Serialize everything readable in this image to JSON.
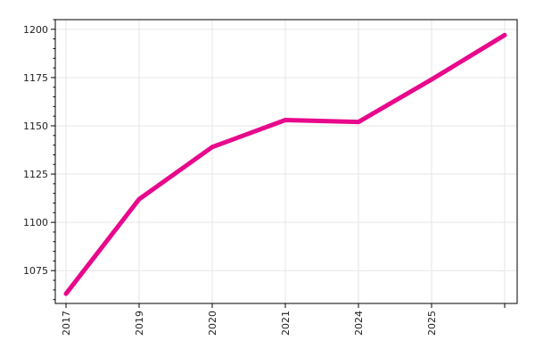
{
  "chart_data": {
    "type": "line",
    "categories": [
      "2017",
      "2019",
      "2020",
      "2021",
      "2024",
      "2025",
      ""
    ],
    "series": [
      {
        "values": [
          1063,
          1112,
          1139,
          1153,
          1152,
          1174,
          1197
        ]
      }
    ],
    "yticks": [
      1075,
      1100,
      1125,
      1150,
      1175,
      1200
    ],
    "ylim": [
      1058,
      1205
    ],
    "xlabel": "",
    "ylabel": "",
    "grid": true,
    "colors": {
      "series": "#e8088c",
      "grid": "#e6e6e6",
      "axis": "#000000"
    }
  }
}
